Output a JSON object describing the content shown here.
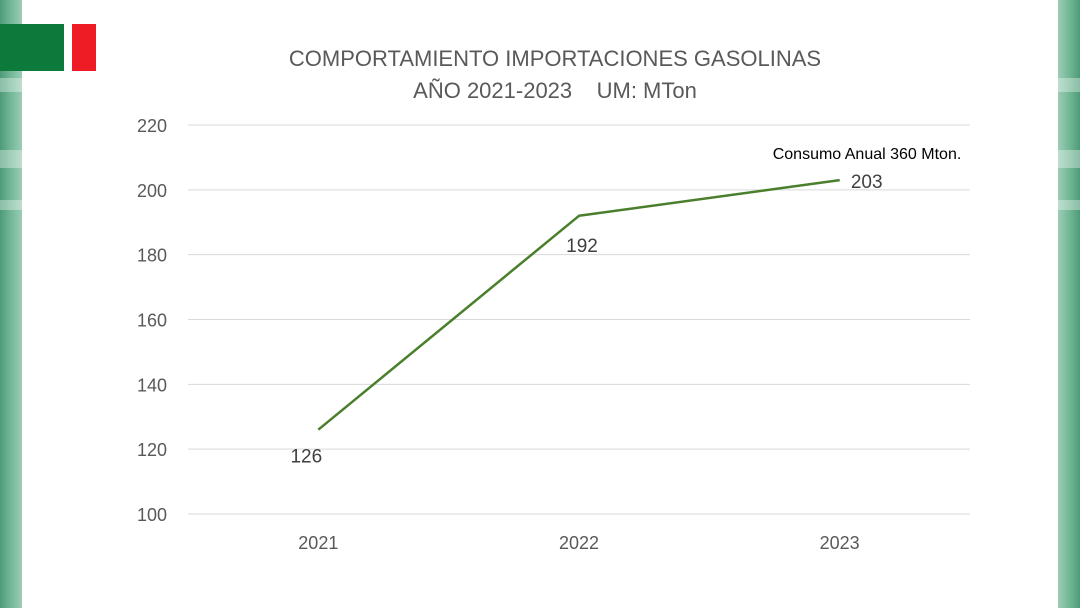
{
  "chart_data": {
    "type": "line",
    "title": "COMPORTAMIENTO IMPORTACIONES GASOLINAS",
    "subtitle": "AÑO 2021-2023    UM: MTon",
    "xlabel": "",
    "ylabel": "",
    "categories": [
      "2021",
      "2022",
      "2023"
    ],
    "series": [
      {
        "values": [
          126,
          192,
          203
        ]
      }
    ],
    "data_labels": [
      "126",
      "192",
      "203"
    ],
    "ylim": [
      100,
      220
    ],
    "yticks": [
      100,
      120,
      140,
      160,
      180,
      200,
      220
    ],
    "ytick_labels": [
      "100",
      "120",
      "140",
      "160",
      "180",
      "200",
      "220"
    ],
    "grid": true,
    "legend": "none",
    "annotation": "Consumo Anual 360 Mton.",
    "line_color": "#4a7f2c",
    "grid_color": "#d9d9d9"
  },
  "theme": {
    "stripe_color": "#5fa985",
    "flag_colors": [
      "#0b7a3b",
      "#ffffff",
      "#ee1c25"
    ]
  }
}
